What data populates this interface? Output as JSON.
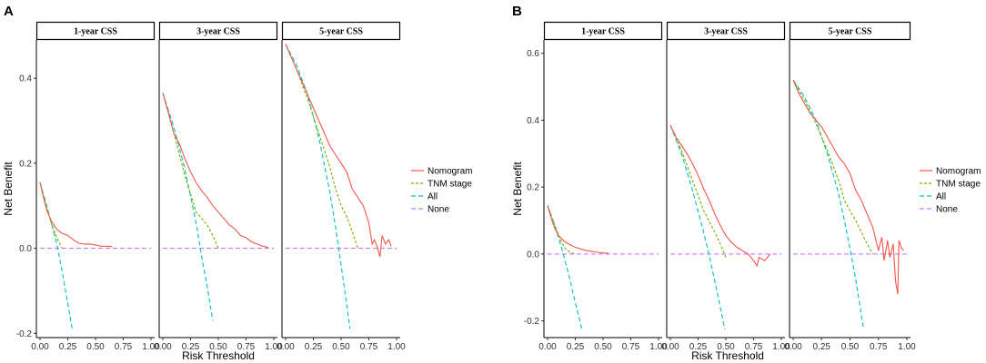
{
  "figure": {
    "colors": {
      "nomogram": "#F2564C",
      "tnm": "#7CAE00",
      "all": "#00BFC4",
      "none": "#C77CFF"
    }
  },
  "chart_data": [
    {
      "type": "line",
      "panel_label": "A",
      "xlabel": "Risk Threshold",
      "ylabel": "Net Benefit",
      "ylim": [
        -0.21,
        0.49
      ],
      "xlim": [
        0,
        1
      ],
      "x_ticks": [
        "0.00",
        "0.25",
        "0.50",
        "0.75",
        "1.00"
      ],
      "x_tick_values": [
        0,
        0.25,
        0.5,
        0.75,
        1
      ],
      "y_ticks": [
        "-0.2",
        "0.0",
        "0.2",
        "0.4"
      ],
      "y_tick_values": [
        -0.2,
        0,
        0.2,
        0.4
      ],
      "grid": false,
      "legend": [
        "Nomogram",
        "TNM stage",
        "All",
        "None"
      ],
      "legend_position": "right",
      "facets": [
        {
          "strip": "1-year CSS",
          "series": [
            {
              "name": "Nomogram",
              "x": [
                0,
                0.03,
                0.06,
                0.1,
                0.15,
                0.2,
                0.25,
                0.3,
                0.35,
                0.4,
                0.45,
                0.5,
                0.55,
                0.6,
                0.65
              ],
              "y": [
                0.155,
                0.12,
                0.09,
                0.065,
                0.045,
                0.035,
                0.03,
                0.02,
                0.012,
                0.01,
                0.01,
                0.008,
                0.005,
                0.005,
                0.004
              ]
            },
            {
              "name": "TNM stage",
              "x": [
                0,
                0.05,
                0.1,
                0.15,
                0.2
              ],
              "y": [
                0.155,
                0.105,
                0.06,
                0.025,
                0.0
              ]
            },
            {
              "name": "All",
              "x": [
                0,
                0.05,
                0.1,
                0.15,
                0.2,
                0.25,
                0.29
              ],
              "y": [
                0.155,
                0.11,
                0.062,
                0.012,
                -0.055,
                -0.13,
                -0.19
              ]
            },
            {
              "name": "None",
              "x": [
                0,
                1
              ],
              "y": [
                0,
                0
              ]
            }
          ]
        },
        {
          "strip": "3-year CSS",
          "series": [
            {
              "name": "Nomogram",
              "x": [
                0,
                0.05,
                0.1,
                0.15,
                0.2,
                0.25,
                0.3,
                0.35,
                0.4,
                0.45,
                0.5,
                0.55,
                0.6,
                0.65,
                0.7,
                0.75,
                0.8,
                0.85,
                0.9,
                0.95
              ],
              "y": [
                0.365,
                0.32,
                0.27,
                0.245,
                0.21,
                0.18,
                0.155,
                0.135,
                0.12,
                0.1,
                0.085,
                0.07,
                0.055,
                0.045,
                0.03,
                0.025,
                0.015,
                0.01,
                0.005,
                0.002
              ]
            },
            {
              "name": "TNM stage",
              "x": [
                0,
                0.1,
                0.2,
                0.3,
                0.4,
                0.45,
                0.5
              ],
              "y": [
                0.365,
                0.27,
                0.17,
                0.085,
                0.055,
                0.03,
                0.0
              ]
            },
            {
              "name": "All",
              "x": [
                0,
                0.1,
                0.2,
                0.3,
                0.35,
                0.4,
                0.45
              ],
              "y": [
                0.365,
                0.285,
                0.185,
                0.06,
                -0.02,
                -0.09,
                -0.17
              ]
            },
            {
              "name": "None",
              "x": [
                0,
                1
              ],
              "y": [
                0,
                0
              ]
            }
          ]
        },
        {
          "strip": "5-year CSS",
          "series": [
            {
              "name": "Nomogram",
              "x": [
                0,
                0.05,
                0.1,
                0.15,
                0.2,
                0.25,
                0.3,
                0.35,
                0.4,
                0.45,
                0.5,
                0.55,
                0.6,
                0.65,
                0.7,
                0.75,
                0.78,
                0.8,
                0.83,
                0.85,
                0.87,
                0.9,
                0.93,
                0.95
              ],
              "y": [
                0.48,
                0.45,
                0.42,
                0.39,
                0.36,
                0.33,
                0.3,
                0.27,
                0.24,
                0.22,
                0.2,
                0.18,
                0.14,
                0.12,
                0.1,
                0.06,
                0.01,
                0.02,
                0.0,
                -0.02,
                0.03,
                0.01,
                0.02,
                0.005
              ]
            },
            {
              "name": "TNM stage",
              "x": [
                0,
                0.1,
                0.2,
                0.3,
                0.4,
                0.45,
                0.5,
                0.55,
                0.6,
                0.65
              ],
              "y": [
                0.48,
                0.42,
                0.35,
                0.27,
                0.19,
                0.14,
                0.1,
                0.075,
                0.04,
                0.0
              ]
            },
            {
              "name": "All",
              "x": [
                0,
                0.1,
                0.2,
                0.3,
                0.4,
                0.45,
                0.5,
                0.55,
                0.58
              ],
              "y": [
                0.48,
                0.43,
                0.36,
                0.26,
                0.13,
                0.05,
                -0.04,
                -0.13,
                -0.19
              ]
            },
            {
              "name": "None",
              "x": [
                0,
                1
              ],
              "y": [
                0,
                0
              ]
            }
          ]
        }
      ]
    },
    {
      "type": "line",
      "panel_label": "B",
      "xlabel": "Risk Threshold",
      "ylabel": "Net Benefit",
      "ylim": [
        -0.25,
        0.64
      ],
      "xlim": [
        0,
        1
      ],
      "x_ticks": [
        "0.00",
        "0.25",
        "0.50",
        "0.75",
        "1.00"
      ],
      "x_tick_values": [
        0,
        0.25,
        0.5,
        0.75,
        1
      ],
      "y_ticks": [
        "-0.2",
        "0.0",
        "0.2",
        "0.4",
        "0.6"
      ],
      "y_tick_values": [
        -0.2,
        0,
        0.2,
        0.4,
        0.6
      ],
      "grid": false,
      "legend": [
        "Nomogram",
        "TNM stage",
        "All",
        "None"
      ],
      "legend_position": "right",
      "facets": [
        {
          "strip": "1-year CSS",
          "series": [
            {
              "name": "Nomogram",
              "x": [
                0,
                0.03,
                0.06,
                0.1,
                0.15,
                0.2,
                0.25,
                0.3,
                0.35,
                0.4,
                0.45,
                0.5,
                0.55
              ],
              "y": [
                0.145,
                0.11,
                0.08,
                0.055,
                0.038,
                0.028,
                0.02,
                0.015,
                0.01,
                0.008,
                0.005,
                0.003,
                0.002
              ]
            },
            {
              "name": "TNM stage",
              "x": [
                0,
                0.05,
                0.1,
                0.15,
                0.2,
                0.25
              ],
              "y": [
                0.145,
                0.1,
                0.055,
                0.02,
                0.005,
                0.0
              ]
            },
            {
              "name": "All",
              "x": [
                0,
                0.05,
                0.1,
                0.15,
                0.2,
                0.25,
                0.31
              ],
              "y": [
                0.145,
                0.1,
                0.048,
                -0.01,
                -0.075,
                -0.145,
                -0.225
              ]
            },
            {
              "name": "None",
              "x": [
                0,
                1
              ],
              "y": [
                0,
                0
              ]
            }
          ]
        },
        {
          "strip": "3-year CSS",
          "series": [
            {
              "name": "Nomogram",
              "x": [
                0,
                0.05,
                0.1,
                0.15,
                0.2,
                0.25,
                0.3,
                0.35,
                0.4,
                0.45,
                0.5,
                0.55,
                0.6,
                0.65,
                0.7,
                0.75,
                0.78,
                0.8,
                0.85,
                0.9
              ],
              "y": [
                0.385,
                0.35,
                0.325,
                0.3,
                0.27,
                0.235,
                0.195,
                0.16,
                0.12,
                0.085,
                0.055,
                0.035,
                0.02,
                0.01,
                0.0,
                -0.02,
                -0.035,
                -0.01,
                -0.02,
                0.0
              ]
            },
            {
              "name": "TNM stage",
              "x": [
                0,
                0.1,
                0.2,
                0.3,
                0.4,
                0.45,
                0.5
              ],
              "y": [
                0.385,
                0.31,
                0.22,
                0.13,
                0.065,
                0.03,
                -0.01
              ]
            },
            {
              "name": "All",
              "x": [
                0,
                0.1,
                0.2,
                0.3,
                0.35,
                0.4,
                0.45,
                0.49
              ],
              "y": [
                0.385,
                0.3,
                0.19,
                0.065,
                -0.005,
                -0.08,
                -0.16,
                -0.225
              ]
            },
            {
              "name": "None",
              "x": [
                0,
                1
              ],
              "y": [
                0,
                0
              ]
            }
          ]
        },
        {
          "strip": "5-year CSS",
          "series": [
            {
              "name": "Nomogram",
              "x": [
                0,
                0.05,
                0.1,
                0.15,
                0.2,
                0.25,
                0.3,
                0.35,
                0.4,
                0.45,
                0.5,
                0.55,
                0.6,
                0.65,
                0.7,
                0.75,
                0.78,
                0.8,
                0.83,
                0.85,
                0.88,
                0.9,
                0.92,
                0.93,
                0.95,
                0.97
              ],
              "y": [
                0.52,
                0.48,
                0.45,
                0.42,
                0.4,
                0.38,
                0.35,
                0.32,
                0.29,
                0.27,
                0.24,
                0.19,
                0.16,
                0.12,
                0.08,
                0.01,
                0.05,
                -0.02,
                0.04,
                -0.01,
                0.03,
                -0.08,
                -0.12,
                0.04,
                0.02,
                0.01
              ]
            },
            {
              "name": "TNM stage",
              "x": [
                0,
                0.1,
                0.2,
                0.3,
                0.4,
                0.45,
                0.5,
                0.55,
                0.6,
                0.65,
                0.7
              ],
              "y": [
                0.52,
                0.46,
                0.39,
                0.31,
                0.22,
                0.16,
                0.13,
                0.1,
                0.065,
                0.03,
                0.0
              ]
            },
            {
              "name": "All",
              "x": [
                0,
                0.1,
                0.2,
                0.3,
                0.4,
                0.45,
                0.5,
                0.55,
                0.58,
                0.62
              ],
              "y": [
                0.52,
                0.47,
                0.4,
                0.3,
                0.18,
                0.1,
                0.015,
                -0.075,
                -0.14,
                -0.225
              ]
            },
            {
              "name": "None",
              "x": [
                0,
                1
              ],
              "y": [
                0,
                0
              ]
            }
          ]
        }
      ]
    }
  ]
}
